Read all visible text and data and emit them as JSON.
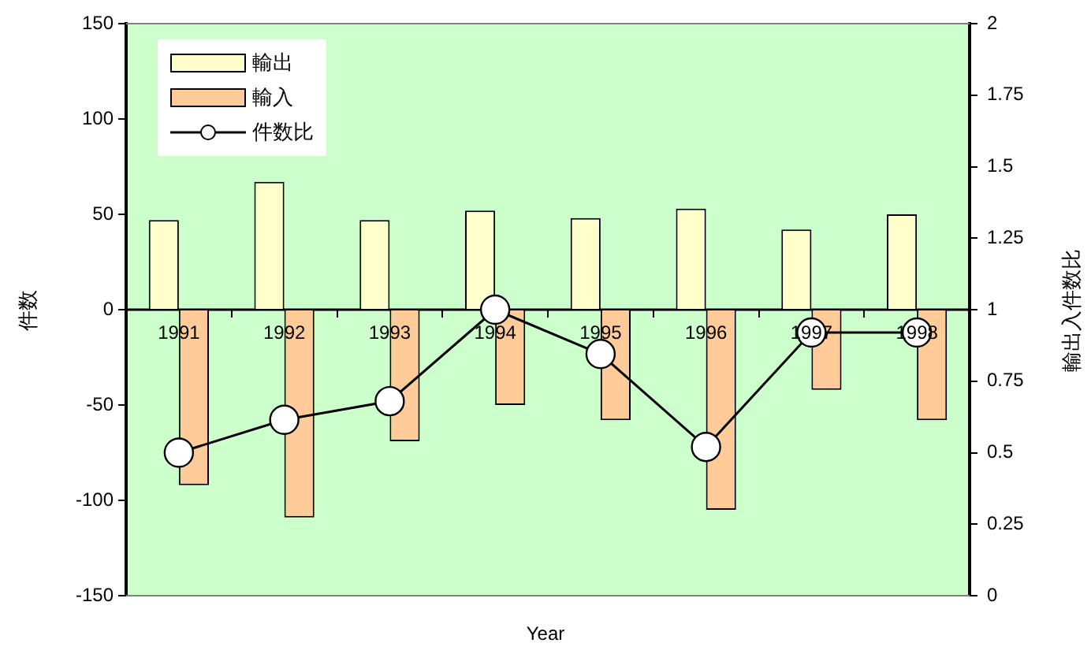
{
  "chart_data": {
    "type": "bar",
    "xlabel": "Year",
    "ylabel": "件数",
    "y2label": "輸出入件数比",
    "categories": [
      "1991",
      "1992",
      "1993",
      "1994",
      "1995",
      "1996",
      "1997",
      "1998"
    ],
    "series": [
      {
        "name": "輸出",
        "color": "#ffffcc",
        "values": [
          47,
          67,
          47,
          52,
          48,
          53,
          42,
          50
        ]
      },
      {
        "name": "輸入",
        "color": "#ffcc99",
        "values": [
          -92,
          -109,
          -69,
          -50,
          -58,
          -105,
          -42,
          -58
        ]
      },
      {
        "name": "件数比",
        "type": "line",
        "axis": "y2",
        "color": "#000000",
        "values": [
          0.5,
          0.615,
          0.68,
          1.0,
          0.845,
          0.52,
          0.92,
          0.92
        ]
      }
    ],
    "ylim": [
      -150,
      150
    ],
    "yticks": [
      -150,
      -100,
      -50,
      0,
      50,
      100,
      150
    ],
    "y2lim": [
      0,
      2
    ],
    "y2ticks": [
      0,
      0.25,
      0.5,
      0.75,
      1,
      1.25,
      1.5,
      1.75,
      2
    ],
    "grid": false,
    "legend": "top left",
    "marker": "circle",
    "line_style": "solid"
  }
}
